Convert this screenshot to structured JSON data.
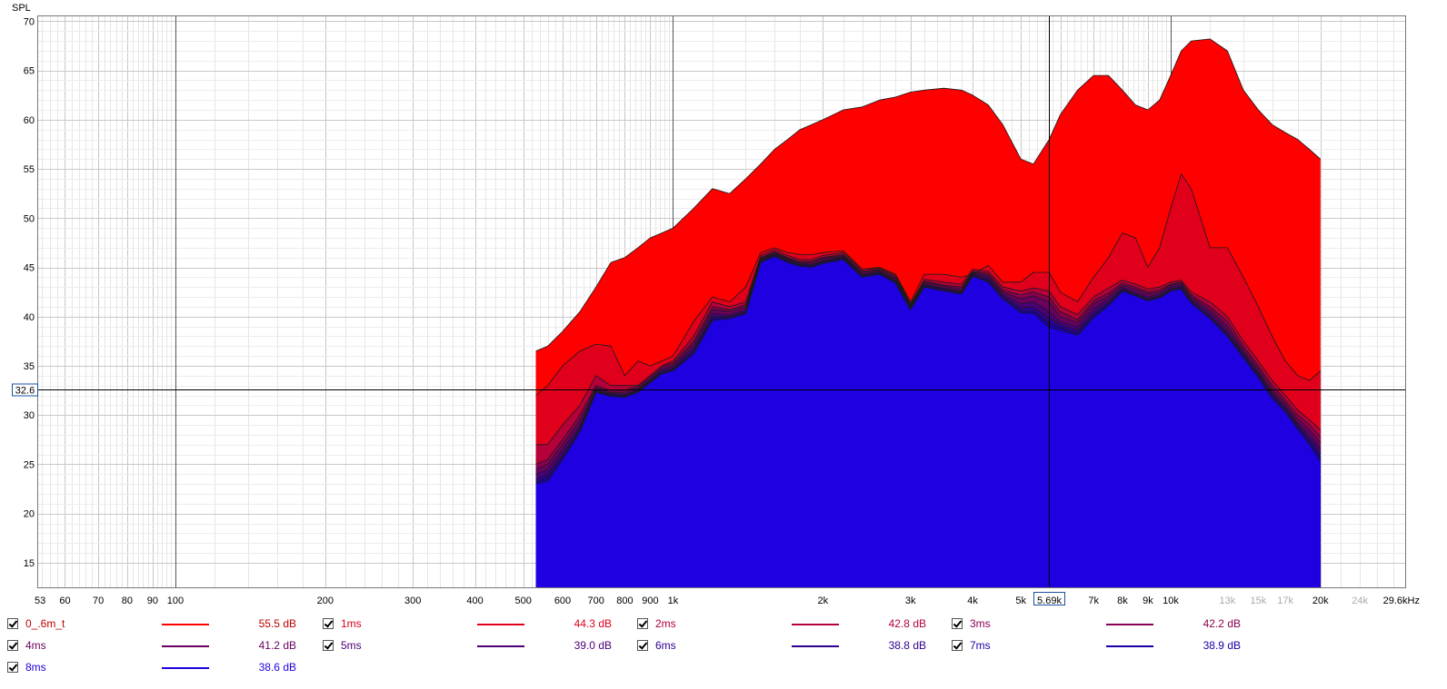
{
  "chart_data": {
    "type": "area",
    "ylabel": "SPL",
    "xlabel": "",
    "x_scale": "log",
    "xlim": [
      53,
      29600
    ],
    "ylim": [
      12.5,
      70.5
    ],
    "grid": true,
    "y_ticks": [
      15,
      20,
      25,
      30,
      35,
      40,
      45,
      50,
      55,
      60,
      65,
      70
    ],
    "x_ticks": [
      {
        "v": 53,
        "label": "53"
      },
      {
        "v": 60,
        "label": "60"
      },
      {
        "v": 70,
        "label": "70"
      },
      {
        "v": 80,
        "label": "80"
      },
      {
        "v": 90,
        "label": "90"
      },
      {
        "v": 100,
        "label": "100"
      },
      {
        "v": 200,
        "label": "200"
      },
      {
        "v": 300,
        "label": "300"
      },
      {
        "v": 400,
        "label": "400"
      },
      {
        "v": 500,
        "label": "500"
      },
      {
        "v": 600,
        "label": "600"
      },
      {
        "v": 700,
        "label": "700"
      },
      {
        "v": 800,
        "label": "800"
      },
      {
        "v": 900,
        "label": "900"
      },
      {
        "v": 1000,
        "label": "1k"
      },
      {
        "v": 2000,
        "label": "2k"
      },
      {
        "v": 3000,
        "label": "3k"
      },
      {
        "v": 4000,
        "label": "4k"
      },
      {
        "v": 5000,
        "label": "5k"
      },
      {
        "v": 7000,
        "label": "7k"
      },
      {
        "v": 8000,
        "label": "8k"
      },
      {
        "v": 9000,
        "label": "9k"
      },
      {
        "v": 10000,
        "label": "10k"
      },
      {
        "v": 13000,
        "label": "13k",
        "grey": true
      },
      {
        "v": 15000,
        "label": "15k",
        "grey": true
      },
      {
        "v": 17000,
        "label": "17k",
        "grey": true
      },
      {
        "v": 20000,
        "label": "20k"
      },
      {
        "v": 24000,
        "label": "24k",
        "grey": true
      },
      {
        "v": 29600,
        "label": "29.6kHz"
      }
    ],
    "cursor": {
      "x": 5690,
      "x_label": "5.69k",
      "y": 32.6,
      "y_label": "32.6"
    },
    "x": [
      530,
      560,
      600,
      650,
      700,
      750,
      800,
      850,
      900,
      950,
      1000,
      1100,
      1200,
      1300,
      1400,
      1500,
      1600,
      1700,
      1800,
      1900,
      2000,
      2200,
      2400,
      2600,
      2800,
      3000,
      3200,
      3500,
      3800,
      4000,
      4300,
      4600,
      5000,
      5300,
      5700,
      6000,
      6500,
      7000,
      7500,
      8000,
      8500,
      9000,
      9500,
      10000,
      10500,
      11000,
      12000,
      13000,
      14000,
      15000,
      16000,
      17000,
      18000,
      19000,
      20000
    ],
    "series": [
      {
        "name": "0_.6m_t",
        "value_label": "55.5 dB",
        "color": "#ff0000",
        "values": [
          36.5,
          37,
          38.5,
          40.5,
          43,
          45.5,
          46,
          47,
          48,
          48.5,
          49,
          51,
          53,
          52.5,
          54,
          55.5,
          57,
          58,
          59,
          59.5,
          60,
          61,
          61.3,
          62,
          62.3,
          62.8,
          63,
          63.2,
          63,
          62.5,
          61.5,
          59.5,
          56,
          55.5,
          58,
          60.5,
          63,
          64.5,
          64.5,
          63,
          61.5,
          61,
          62,
          64.5,
          67,
          68,
          68.2,
          67,
          63,
          61,
          59.5,
          58.7,
          58,
          57,
          56
        ]
      },
      {
        "name": "1ms",
        "value_label": "44.3 dB",
        "color": "#e0001c",
        "values": [
          32,
          33,
          35,
          36.5,
          37.2,
          37,
          34,
          35.5,
          35,
          35.5,
          36,
          39.5,
          42,
          41.5,
          43,
          46.5,
          47,
          46.5,
          46.3,
          46.3,
          46.5,
          46.7,
          44.8,
          45,
          44.3,
          41.5,
          44.3,
          44.3,
          44,
          44.3,
          45.2,
          43.5,
          43.5,
          44.5,
          44.5,
          42.5,
          41.5,
          44,
          46,
          48.5,
          48,
          45,
          47,
          51,
          54.5,
          53,
          47,
          47,
          44,
          41,
          38,
          35.5,
          34,
          33.5,
          34.5
        ]
      },
      {
        "name": "2ms",
        "value_label": "42.8 dB",
        "color": "#b5003a",
        "values": [
          27,
          27,
          29,
          31,
          34,
          33,
          33,
          33,
          34,
          35,
          35.5,
          38,
          41.5,
          41,
          41.5,
          46.2,
          46.8,
          46.2,
          45.8,
          45.8,
          46.2,
          46.5,
          44.8,
          44.9,
          44.2,
          41.3,
          43.8,
          43.5,
          43.3,
          44.8,
          44.6,
          43,
          42.6,
          42.9,
          42.6,
          41,
          40.2,
          42,
          42.9,
          43.7,
          43.3,
          42.8,
          43,
          43.5,
          43.7,
          42.5,
          41.5,
          40,
          37.5,
          35.5,
          33.5,
          32,
          30.5,
          29.5,
          28.5
        ]
      },
      {
        "name": "3ms",
        "value_label": "42.2 dB",
        "color": "#8a0050",
        "values": [
          25,
          25.5,
          27.5,
          30,
          33,
          32.5,
          32.5,
          33,
          34,
          35,
          35.3,
          37.5,
          41,
          40.7,
          41.2,
          46,
          46.6,
          46,
          45.6,
          45.6,
          46,
          46.3,
          44.6,
          44.8,
          44,
          41.2,
          43.6,
          43.2,
          43,
          44.6,
          44.4,
          42.7,
          42.2,
          42.5,
          42,
          40.5,
          39.7,
          41.6,
          42.4,
          43.4,
          43,
          42.5,
          42.7,
          43.3,
          43.5,
          42.2,
          41,
          39.5,
          37,
          35,
          33,
          31.5,
          30,
          29,
          27.8
        ]
      },
      {
        "name": "4ms",
        "value_label": "41.2 dB",
        "color": "#6b0060",
        "values": [
          24.5,
          25,
          27,
          29.5,
          32.8,
          32.3,
          32.3,
          32.8,
          33.8,
          34.8,
          35.1,
          37.2,
          40.7,
          40.5,
          41,
          45.9,
          46.5,
          45.9,
          45.5,
          45.5,
          45.9,
          46.2,
          44.5,
          44.7,
          43.9,
          41.1,
          43.5,
          43.1,
          42.8,
          44.5,
          44.2,
          42.5,
          41.8,
          42.1,
          41.5,
          40,
          39.4,
          41.3,
          42.1,
          43.2,
          42.8,
          42.3,
          42.5,
          43.2,
          43.4,
          42,
          40.7,
          39,
          36.7,
          34.7,
          32.6,
          31.2,
          29.6,
          28.5,
          27.2
        ]
      },
      {
        "name": "5ms",
        "value_label": "39.0 dB",
        "color": "#4c0078",
        "values": [
          24,
          24.5,
          26.5,
          29,
          32.6,
          32.2,
          32.1,
          32.6,
          33.6,
          34.6,
          34.9,
          36.9,
          40.3,
          40.2,
          40.7,
          45.8,
          46.4,
          45.8,
          45.4,
          45.3,
          45.7,
          46.1,
          44.3,
          44.6,
          43.7,
          41,
          43.3,
          42.9,
          42.6,
          44.4,
          44,
          42.3,
          41.3,
          41.5,
          40.5,
          39.5,
          39,
          40.8,
          41.8,
          43,
          42.5,
          42,
          42.3,
          43,
          43.2,
          41.8,
          40.4,
          38.6,
          36.4,
          34.4,
          32.3,
          30.9,
          29.2,
          28,
          26.6
        ]
      },
      {
        "name": "6ms",
        "value_label": "38.8 dB",
        "color": "#30008f",
        "values": [
          23.5,
          24,
          26,
          28.7,
          32.5,
          32.1,
          32,
          32.5,
          33.5,
          34.4,
          34.7,
          36.6,
          40,
          40,
          40.5,
          45.7,
          46.3,
          45.7,
          45.3,
          45.2,
          45.6,
          46,
          44.2,
          44.5,
          43.6,
          40.9,
          43.2,
          42.8,
          42.5,
          44.3,
          43.8,
          42.1,
          40.9,
          41,
          39.8,
          39.2,
          38.6,
          40.4,
          41.5,
          42.8,
          42.3,
          41.8,
          42.1,
          42.8,
          43,
          41.6,
          40.1,
          38.3,
          36.2,
          34.2,
          32.1,
          30.7,
          29,
          27.6,
          26.1
        ]
      },
      {
        "name": "7ms",
        "value_label": "38.9 dB",
        "color": "#1800a8",
        "values": [
          23.2,
          23.6,
          25.7,
          28.5,
          32.4,
          32,
          31.9,
          32.4,
          33.4,
          34.3,
          34.6,
          36.4,
          39.8,
          39.9,
          40.4,
          45.6,
          46.2,
          45.6,
          45.2,
          45.1,
          45.5,
          45.9,
          44.1,
          44.4,
          43.5,
          40.8,
          43.1,
          42.7,
          42.4,
          44.2,
          43.6,
          41.9,
          40.6,
          40.6,
          39.3,
          38.9,
          38.3,
          40.1,
          41.3,
          42.7,
          42.2,
          41.7,
          42,
          42.7,
          42.9,
          41.5,
          39.9,
          38.1,
          36,
          34,
          31.9,
          30.5,
          28.8,
          27.3,
          25.7
        ]
      },
      {
        "name": "8ms",
        "value_label": "38.6 dB",
        "color": "#1e00e0",
        "values": [
          23,
          23.3,
          25.5,
          28.3,
          32.3,
          31.9,
          31.8,
          32.3,
          33.3,
          34.2,
          34.5,
          36.2,
          39.6,
          39.8,
          40.3,
          45.5,
          46.1,
          45.5,
          45.1,
          45,
          45.4,
          45.8,
          44,
          44.3,
          43.4,
          40.7,
          43,
          42.6,
          42.3,
          44.1,
          43.5,
          41.8,
          40.4,
          40.3,
          38.9,
          38.6,
          38.1,
          39.9,
          41.1,
          42.6,
          42.1,
          41.6,
          41.9,
          42.6,
          42.8,
          41.4,
          39.8,
          38,
          35.8,
          33.8,
          31.7,
          30.3,
          28.6,
          27,
          25.3
        ]
      }
    ]
  }
}
